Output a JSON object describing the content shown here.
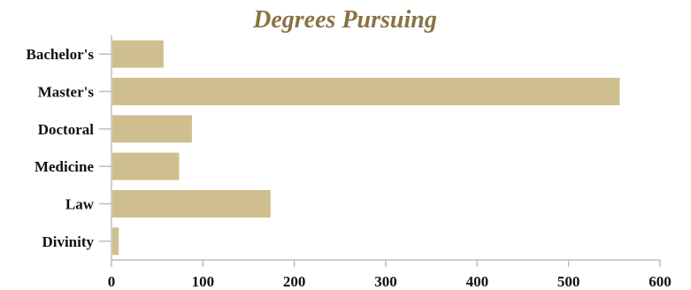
{
  "chart_data": {
    "type": "bar",
    "orientation": "horizontal",
    "title": "Degrees Pursuing",
    "xlabel": "",
    "ylabel": "",
    "categories": [
      "Bachelor's",
      "Master's",
      "Doctoral",
      "Medicine",
      "Law",
      "Divinity"
    ],
    "values": [
      56,
      555,
      87,
      73,
      173,
      7
    ],
    "xlim": [
      0,
      600
    ],
    "x_ticks": [
      0,
      100,
      200,
      300,
      400,
      500,
      600
    ],
    "grid": false,
    "legend": "none",
    "bar_color": "#cfbf8e",
    "title_color": "#8a7242",
    "axis_color": "#bdbdbd"
  }
}
